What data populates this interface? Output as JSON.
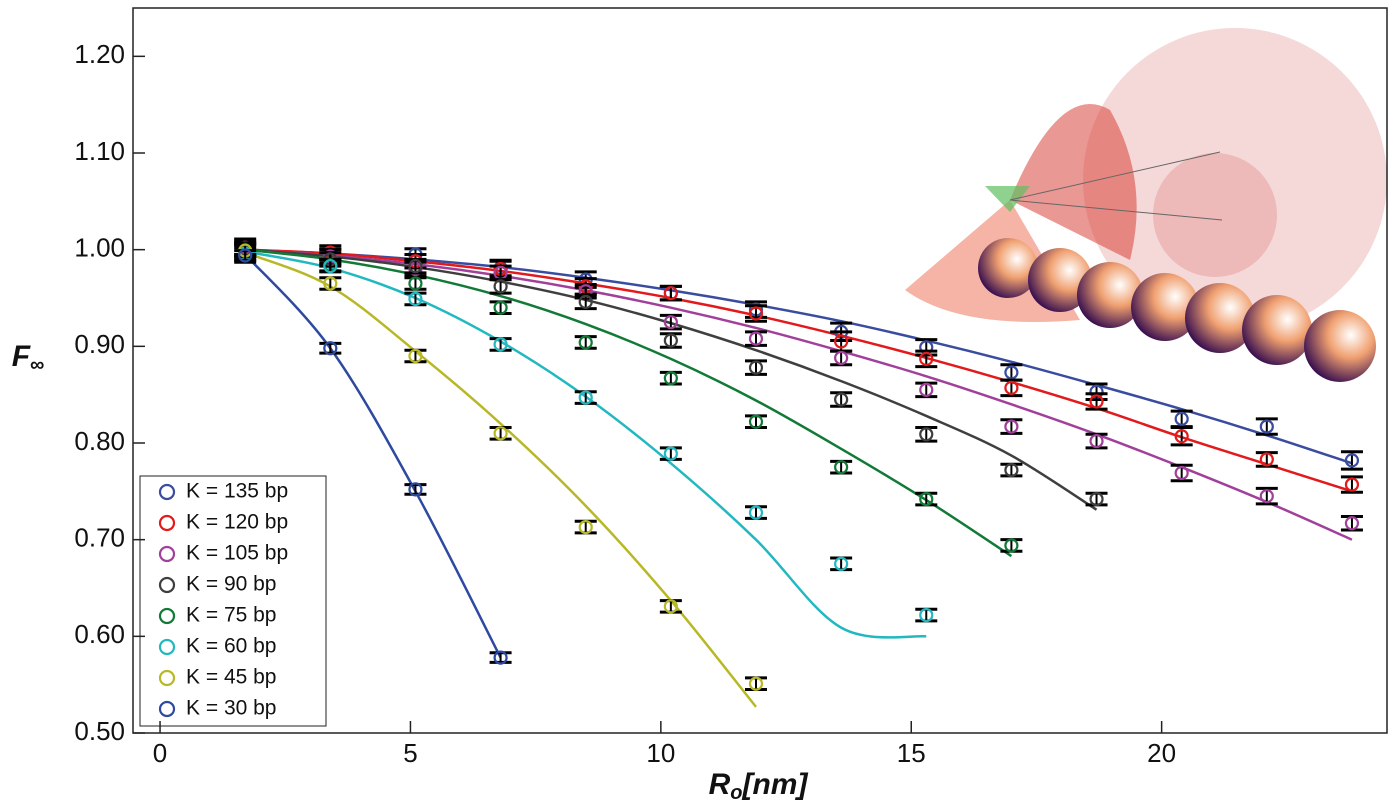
{
  "chart_data": {
    "type": "scatter-fit",
    "y_label": {
      "symbol": "F",
      "subscript": "∞"
    },
    "x_label": {
      "symbol": "R",
      "subscript": "o",
      "unit": "[nm]"
    },
    "xlim": [
      -0.54,
      24.5
    ],
    "ylim": [
      0.5,
      1.25
    ],
    "xticks": [
      0,
      5,
      10,
      15,
      20
    ],
    "yticks": [
      {
        "value": 0.5,
        "label": "0.50"
      },
      {
        "value": 0.6,
        "label": "0.60"
      },
      {
        "value": 0.7,
        "label": "0.70"
      },
      {
        "value": 0.8,
        "label": "0.80"
      },
      {
        "value": 0.9,
        "label": "0.90"
      },
      {
        "value": 1.0,
        "label": "1.00"
      },
      {
        "value": 1.1,
        "label": "1.10"
      },
      {
        "value": 1.2,
        "label": "1.20"
      }
    ],
    "legend": "lower left",
    "series": [
      {
        "name": "K = 135 bp",
        "color": "#3a4ca0",
        "x": [
          1.7,
          3.4,
          5.1,
          6.8,
          8.5,
          10.2,
          11.9,
          13.6,
          15.3,
          17.0,
          18.7,
          20.4,
          22.1,
          23.8
        ],
        "values": [
          0.997,
          0.993,
          0.995,
          0.981,
          0.969,
          0.955,
          0.938,
          0.915,
          0.899,
          0.873,
          0.853,
          0.825,
          0.817,
          0.782
        ],
        "errors": [
          0.01,
          0.008,
          0.006,
          0.008,
          0.008,
          0.007,
          0.008,
          0.009,
          0.008,
          0.008,
          0.008,
          0.008,
          0.008,
          0.009
        ],
        "fit_values": [
          1.0,
          0.996,
          0.99,
          0.982,
          0.971,
          0.958,
          0.943,
          0.926,
          0.906,
          0.884,
          0.86,
          0.835,
          0.808,
          0.779
        ]
      },
      {
        "name": "K = 120 bp",
        "color": "#e31a1c",
        "x": [
          1.7,
          3.4,
          5.1,
          6.8,
          8.5,
          10.2,
          11.9,
          13.6,
          15.3,
          17.0,
          18.7,
          20.4,
          22.1,
          23.8
        ],
        "values": [
          1.003,
          0.997,
          0.988,
          0.98,
          0.962,
          0.955,
          0.934,
          0.905,
          0.887,
          0.857,
          0.843,
          0.807,
          0.783,
          0.757
        ],
        "errors": [
          0.008,
          0.007,
          0.007,
          0.008,
          0.008,
          0.007,
          0.008,
          0.01,
          0.008,
          0.008,
          0.008,
          0.009,
          0.007,
          0.008
        ],
        "fit_values": [
          1.0,
          0.996,
          0.988,
          0.978,
          0.965,
          0.95,
          0.932,
          0.911,
          0.888,
          0.863,
          0.836,
          0.806,
          0.778,
          0.75
        ]
      },
      {
        "name": "K = 105 bp",
        "color": "#a1409a",
        "x": [
          1.7,
          3.4,
          5.1,
          6.8,
          8.5,
          10.2,
          11.9,
          13.6,
          15.3,
          17.0,
          18.7,
          20.4,
          22.1,
          23.8
        ],
        "values": [
          1.002,
          0.993,
          0.98,
          0.976,
          0.957,
          0.925,
          0.908,
          0.888,
          0.855,
          0.817,
          0.802,
          0.769,
          0.745,
          0.717
        ],
        "errors": [
          0.007,
          0.007,
          0.007,
          0.007,
          0.007,
          0.007,
          0.007,
          0.007,
          0.007,
          0.007,
          0.007,
          0.008,
          0.008,
          0.007
        ],
        "fit_values": [
          1.0,
          0.994,
          0.985,
          0.973,
          0.958,
          0.94,
          0.919,
          0.895,
          0.869,
          0.84,
          0.809,
          0.775,
          0.739,
          0.7
        ]
      },
      {
        "name": "K = 90 bp",
        "color": "#3f3f3f",
        "x": [
          1.7,
          3.4,
          5.1,
          6.8,
          8.5,
          10.2,
          11.9,
          13.6,
          15.3,
          17.0,
          18.7
        ],
        "values": [
          1.0,
          0.99,
          0.983,
          0.962,
          0.946,
          0.906,
          0.878,
          0.845,
          0.809,
          0.772,
          0.742
        ],
        "errors": [
          0.007,
          0.007,
          0.007,
          0.007,
          0.007,
          0.007,
          0.007,
          0.007,
          0.007,
          0.006,
          0.006
        ],
        "fit_values": [
          1.0,
          0.993,
          0.982,
          0.967,
          0.948,
          0.924,
          0.896,
          0.864,
          0.828,
          0.787,
          0.731
        ]
      },
      {
        "name": "K = 75 bp",
        "color": "#127a37",
        "x": [
          1.7,
          3.4,
          5.1,
          6.8,
          8.5,
          10.2,
          11.9,
          13.6,
          15.3,
          17.0
        ],
        "values": [
          0.999,
          0.984,
          0.965,
          0.94,
          0.904,
          0.867,
          0.822,
          0.775,
          0.742,
          0.694
        ],
        "errors": [
          0.006,
          0.006,
          0.006,
          0.006,
          0.006,
          0.006,
          0.006,
          0.006,
          0.006,
          0.006
        ],
        "fit_values": [
          1.0,
          0.99,
          0.974,
          0.952,
          0.923,
          0.887,
          0.844,
          0.794,
          0.741,
          0.683
        ]
      },
      {
        "name": "K = 60 bp",
        "color": "#22b8c0",
        "x": [
          1.7,
          3.4,
          5.1,
          6.8,
          8.5,
          10.2,
          11.9,
          13.6,
          15.3
        ],
        "values": [
          0.996,
          0.983,
          0.949,
          0.902,
          0.847,
          0.789,
          0.728,
          0.675,
          0.622
        ],
        "errors": [
          0.006,
          0.006,
          0.006,
          0.006,
          0.006,
          0.006,
          0.006,
          0.006,
          0.006
        ],
        "fit_values": [
          0.998,
          0.981,
          0.95,
          0.905,
          0.848,
          0.779,
          0.7,
          0.609,
          0.6
        ]
      },
      {
        "name": "K = 45 bp",
        "color": "#b8b826",
        "x": [
          1.7,
          3.4,
          5.1,
          6.8,
          8.5,
          10.2,
          11.9
        ],
        "values": [
          0.999,
          0.965,
          0.89,
          0.81,
          0.713,
          0.631,
          0.551
        ],
        "errors": [
          0.006,
          0.006,
          0.006,
          0.006,
          0.006,
          0.006,
          0.006
        ],
        "fit_values": [
          0.997,
          0.962,
          0.895,
          0.82,
          0.735,
          0.637,
          0.527
        ]
      },
      {
        "name": "K = 30 bp",
        "color": "#2e4aa0",
        "x": [
          1.7,
          3.4,
          5.1,
          6.8
        ],
        "values": [
          0.994,
          0.898,
          0.752,
          0.578
        ],
        "errors": [
          0.005,
          0.005,
          0.005,
          0.005
        ],
        "fit_values": [
          0.995,
          0.898,
          0.75,
          0.578
        ]
      }
    ]
  }
}
